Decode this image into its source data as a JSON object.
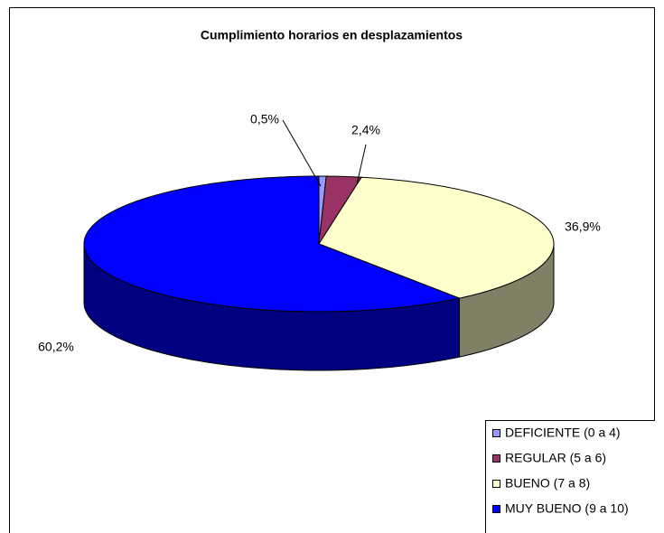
{
  "chart_data": {
    "type": "pie",
    "title": "Cumplimiento horarios en desplazamientos",
    "categories": [
      "DEFICIENTE (0 a 4)",
      "REGULAR (5 a 6)",
      "BUENO (7 a 8)",
      "MUY BUENO (9 a 10)"
    ],
    "values": [
      0.5,
      2.4,
      36.9,
      60.2
    ],
    "value_labels": [
      "0,5%",
      "2,4%",
      "36,9%",
      "60,2%"
    ],
    "colors": [
      "#9999ff",
      "#993366",
      "#ffffcc",
      "#0000ff"
    ],
    "legend": "bottom-right"
  }
}
